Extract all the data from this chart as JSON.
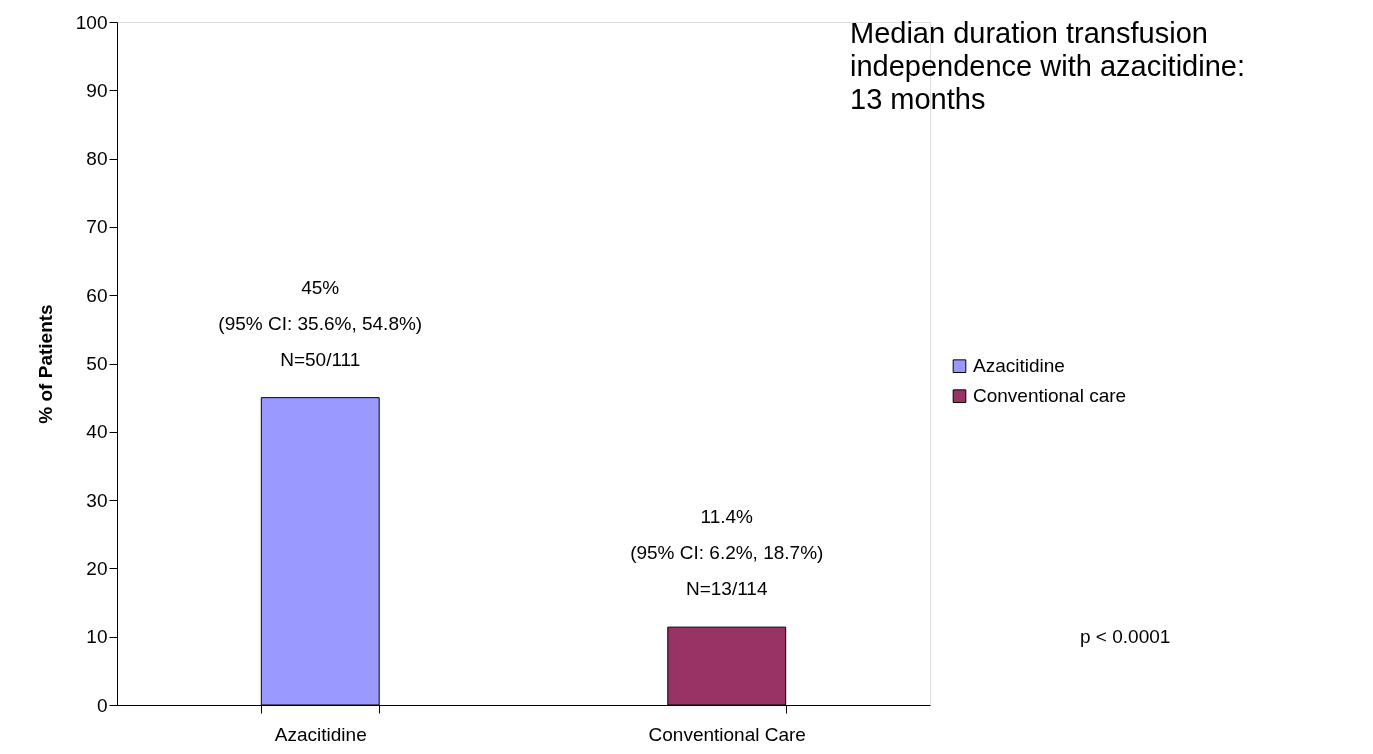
{
  "chart_data": {
    "type": "bar",
    "ylabel": "% of Patients",
    "categories": [
      "Azacitidine",
      "Conventional Care"
    ],
    "series": [
      {
        "name": "Azacitidine",
        "color": "#9999ff",
        "values": [
          45,
          null
        ],
        "value_labels": [
          "45%\n(95% CI: 35.6%, 54.8%)\nN=50/111",
          null
        ]
      },
      {
        "name": "Conventional care",
        "color": "#993366",
        "values": [
          null,
          11.4
        ],
        "value_labels": [
          null,
          "11.4%\n(95% CI: 6.2%, 18.7%)\nN=13/114"
        ]
      }
    ],
    "ylim": [
      0,
      100
    ],
    "yticks": [
      0,
      10,
      20,
      30,
      40,
      50,
      60,
      70,
      80,
      90,
      100
    ],
    "grid": false,
    "legend": "right",
    "annotations": [
      "Median duration transfusion\nindependence with azacitidine:\n13 months",
      "p < 0.0001"
    ]
  }
}
